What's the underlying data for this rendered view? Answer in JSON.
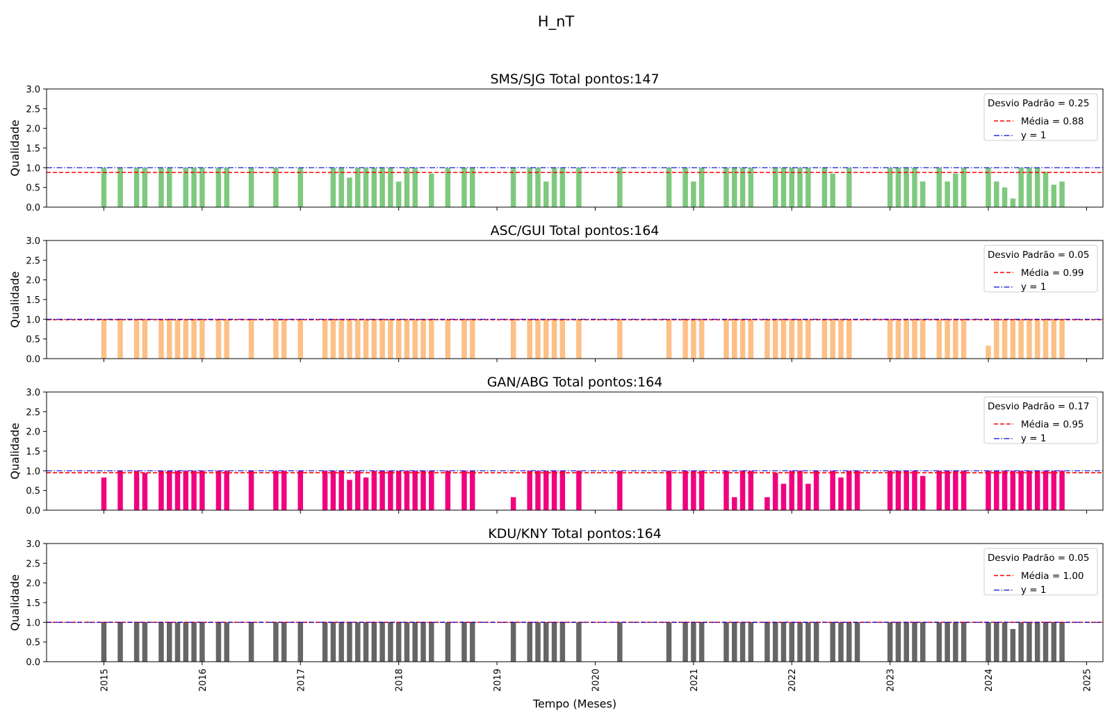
{
  "figure": {
    "suptitle": "H_nT",
    "xlabel": "Tempo (Meses)",
    "ylabel": "Qualidade",
    "year_ticks": [
      "2015",
      "2016",
      "2017",
      "2018",
      "2019",
      "2020",
      "2021",
      "2022",
      "2023",
      "2024",
      "2025"
    ],
    "y_ticks": [
      "0.0",
      "0.5",
      "1.0",
      "1.5",
      "2.0",
      "2.5",
      "3.0"
    ]
  },
  "chart_data": [
    {
      "type": "bar",
      "title": "SMS/SJG Total pontos:147",
      "ylabel": "Qualidade",
      "xlabel": "",
      "ylim": [
        0,
        3.0
      ],
      "xlim": [
        "2014-06",
        "2025-03"
      ],
      "color": "#7fc97f",
      "legend": {
        "title": "Desvio Padrão = 0.25",
        "entries": [
          "Média = 0.88",
          "y = 1"
        ],
        "placement": "upper right"
      },
      "mean": 0.88,
      "reference": 1,
      "mean_color": "#ff0000",
      "reference_color": "#0000cc",
      "points": [
        [
          "2015-01",
          1
        ],
        [
          "2015-03",
          1
        ],
        [
          "2015-05",
          1
        ],
        [
          "2015-06",
          1
        ],
        [
          "2015-08",
          1
        ],
        [
          "2015-09",
          1
        ],
        [
          "2015-11",
          1
        ],
        [
          "2015-12",
          1
        ],
        [
          "2016-01",
          1
        ],
        [
          "2016-03",
          1
        ],
        [
          "2016-04",
          1
        ],
        [
          "2016-07",
          1
        ],
        [
          "2016-10",
          1
        ],
        [
          "2017-01",
          1
        ],
        [
          "2017-05",
          1
        ],
        [
          "2017-06",
          1
        ],
        [
          "2017-07",
          0.75
        ],
        [
          "2017-08",
          1
        ],
        [
          "2017-09",
          1
        ],
        [
          "2017-10",
          1
        ],
        [
          "2017-11",
          1
        ],
        [
          "2017-12",
          1
        ],
        [
          "2018-01",
          0.65
        ],
        [
          "2018-02",
          1
        ],
        [
          "2018-03",
          1
        ],
        [
          "2018-05",
          0.85
        ],
        [
          "2018-07",
          1
        ],
        [
          "2018-09",
          1
        ],
        [
          "2018-10",
          1
        ],
        [
          "2019-03",
          1
        ],
        [
          "2019-05",
          1
        ],
        [
          "2019-06",
          1
        ],
        [
          "2019-07",
          0.65
        ],
        [
          "2019-08",
          1
        ],
        [
          "2019-09",
          1
        ],
        [
          "2019-11",
          1
        ],
        [
          "2020-04",
          1
        ],
        [
          "2020-10",
          1
        ],
        [
          "2020-12",
          1
        ],
        [
          "2021-01",
          0.65
        ],
        [
          "2021-02",
          1
        ],
        [
          "2021-05",
          1
        ],
        [
          "2021-06",
          1
        ],
        [
          "2021-07",
          1
        ],
        [
          "2021-08",
          1
        ],
        [
          "2021-11",
          1
        ],
        [
          "2021-12",
          1
        ],
        [
          "2022-01",
          1
        ],
        [
          "2022-02",
          1
        ],
        [
          "2022-03",
          1
        ],
        [
          "2022-05",
          1
        ],
        [
          "2022-06",
          0.85
        ],
        [
          "2022-08",
          1
        ],
        [
          "2023-01",
          1
        ],
        [
          "2023-02",
          1
        ],
        [
          "2023-03",
          1
        ],
        [
          "2023-04",
          1
        ],
        [
          "2023-05",
          0.65
        ],
        [
          "2023-07",
          1
        ],
        [
          "2023-08",
          0.65
        ],
        [
          "2023-09",
          0.85
        ],
        [
          "2023-10",
          1
        ],
        [
          "2024-01",
          1
        ],
        [
          "2024-02",
          0.65
        ],
        [
          "2024-03",
          0.5
        ],
        [
          "2024-04",
          0.22
        ],
        [
          "2024-05",
          1
        ],
        [
          "2024-06",
          1
        ],
        [
          "2024-07",
          1
        ],
        [
          "2024-08",
          0.9
        ],
        [
          "2024-09",
          0.57
        ],
        [
          "2024-10",
          0.65
        ]
      ]
    },
    {
      "type": "bar",
      "title": "ASC/GUI Total pontos:164",
      "ylabel": "Qualidade",
      "xlabel": "",
      "ylim": [
        0,
        3.0
      ],
      "xlim": [
        "2014-06",
        "2025-03"
      ],
      "color": "#fdc086",
      "legend": {
        "title": "Desvio Padrão = 0.05",
        "entries": [
          "Média = 0.99",
          "y = 1"
        ],
        "placement": "upper right"
      },
      "mean": 0.99,
      "reference": 1,
      "mean_color": "#ff0000",
      "reference_color": "#0000cc",
      "points": [
        [
          "2015-01",
          1
        ],
        [
          "2015-03",
          1
        ],
        [
          "2015-05",
          1
        ],
        [
          "2015-06",
          1
        ],
        [
          "2015-08",
          1
        ],
        [
          "2015-09",
          1
        ],
        [
          "2015-10",
          1
        ],
        [
          "2015-11",
          1
        ],
        [
          "2015-12",
          1
        ],
        [
          "2016-01",
          1
        ],
        [
          "2016-03",
          1
        ],
        [
          "2016-04",
          1
        ],
        [
          "2016-07",
          1
        ],
        [
          "2016-10",
          1
        ],
        [
          "2016-11",
          1
        ],
        [
          "2017-01",
          1
        ],
        [
          "2017-04",
          1
        ],
        [
          "2017-05",
          1
        ],
        [
          "2017-06",
          1
        ],
        [
          "2017-07",
          1
        ],
        [
          "2017-08",
          1
        ],
        [
          "2017-09",
          1
        ],
        [
          "2017-10",
          1
        ],
        [
          "2017-11",
          1
        ],
        [
          "2017-12",
          1
        ],
        [
          "2018-01",
          1
        ],
        [
          "2018-02",
          1
        ],
        [
          "2018-03",
          1
        ],
        [
          "2018-04",
          1
        ],
        [
          "2018-05",
          1
        ],
        [
          "2018-07",
          1
        ],
        [
          "2018-09",
          1
        ],
        [
          "2018-10",
          1
        ],
        [
          "2019-03",
          1
        ],
        [
          "2019-05",
          1
        ],
        [
          "2019-06",
          1
        ],
        [
          "2019-07",
          1
        ],
        [
          "2019-08",
          1
        ],
        [
          "2019-09",
          1
        ],
        [
          "2019-11",
          1
        ],
        [
          "2020-04",
          1
        ],
        [
          "2020-10",
          1
        ],
        [
          "2020-12",
          1
        ],
        [
          "2021-01",
          1
        ],
        [
          "2021-02",
          1
        ],
        [
          "2021-05",
          1
        ],
        [
          "2021-06",
          1
        ],
        [
          "2021-07",
          1
        ],
        [
          "2021-08",
          1
        ],
        [
          "2021-10",
          1
        ],
        [
          "2021-11",
          1
        ],
        [
          "2021-12",
          1
        ],
        [
          "2022-01",
          1
        ],
        [
          "2022-02",
          1
        ],
        [
          "2022-03",
          1
        ],
        [
          "2022-05",
          1
        ],
        [
          "2022-06",
          1
        ],
        [
          "2022-07",
          1
        ],
        [
          "2022-08",
          1
        ],
        [
          "2023-01",
          1
        ],
        [
          "2023-02",
          1
        ],
        [
          "2023-03",
          1
        ],
        [
          "2023-04",
          1
        ],
        [
          "2023-05",
          1
        ],
        [
          "2023-07",
          1
        ],
        [
          "2023-08",
          1
        ],
        [
          "2023-09",
          1
        ],
        [
          "2023-10",
          1
        ],
        [
          "2024-01",
          0.33
        ],
        [
          "2024-02",
          1
        ],
        [
          "2024-03",
          1
        ],
        [
          "2024-04",
          1
        ],
        [
          "2024-05",
          1
        ],
        [
          "2024-06",
          1
        ],
        [
          "2024-07",
          1
        ],
        [
          "2024-08",
          1
        ],
        [
          "2024-09",
          1
        ],
        [
          "2024-10",
          1
        ]
      ]
    },
    {
      "type": "bar",
      "title": "GAN/ABG Total pontos:164",
      "ylabel": "Qualidade",
      "xlabel": "",
      "ylim": [
        0,
        3.0
      ],
      "xlim": [
        "2014-06",
        "2025-03"
      ],
      "color": "#f0027f",
      "legend": {
        "title": "Desvio Padrão = 0.17",
        "entries": [
          "Média = 0.95",
          "y = 1"
        ],
        "placement": "upper right"
      },
      "mean": 0.95,
      "reference": 1,
      "mean_color": "#ff0000",
      "reference_color": "#0000cc",
      "points": [
        [
          "2015-01",
          0.83
        ],
        [
          "2015-03",
          1
        ],
        [
          "2015-05",
          1
        ],
        [
          "2015-06",
          0.95
        ],
        [
          "2015-08",
          1
        ],
        [
          "2015-09",
          1
        ],
        [
          "2015-10",
          1
        ],
        [
          "2015-11",
          1
        ],
        [
          "2015-12",
          1
        ],
        [
          "2016-01",
          1
        ],
        [
          "2016-03",
          1
        ],
        [
          "2016-04",
          1
        ],
        [
          "2016-07",
          1
        ],
        [
          "2016-10",
          1
        ],
        [
          "2016-11",
          1
        ],
        [
          "2017-01",
          1
        ],
        [
          "2017-04",
          1
        ],
        [
          "2017-05",
          1
        ],
        [
          "2017-06",
          1
        ],
        [
          "2017-07",
          0.77
        ],
        [
          "2017-08",
          1
        ],
        [
          "2017-09",
          0.83
        ],
        [
          "2017-10",
          1
        ],
        [
          "2017-11",
          1
        ],
        [
          "2017-12",
          1
        ],
        [
          "2018-01",
          1
        ],
        [
          "2018-02",
          1
        ],
        [
          "2018-03",
          1
        ],
        [
          "2018-04",
          1
        ],
        [
          "2018-05",
          1
        ],
        [
          "2018-07",
          1
        ],
        [
          "2018-09",
          1
        ],
        [
          "2018-10",
          1
        ],
        [
          "2019-03",
          0.33
        ],
        [
          "2019-05",
          1
        ],
        [
          "2019-06",
          1
        ],
        [
          "2019-07",
          1
        ],
        [
          "2019-08",
          1
        ],
        [
          "2019-09",
          1
        ],
        [
          "2019-11",
          1
        ],
        [
          "2020-04",
          1
        ],
        [
          "2020-10",
          1
        ],
        [
          "2020-12",
          1
        ],
        [
          "2021-01",
          1
        ],
        [
          "2021-02",
          1
        ],
        [
          "2021-05",
          1
        ],
        [
          "2021-06",
          0.33
        ],
        [
          "2021-07",
          1
        ],
        [
          "2021-08",
          1
        ],
        [
          "2021-10",
          0.33
        ],
        [
          "2021-11",
          0.95
        ],
        [
          "2021-12",
          0.67
        ],
        [
          "2022-01",
          1
        ],
        [
          "2022-02",
          1
        ],
        [
          "2022-03",
          0.67
        ],
        [
          "2022-04",
          1
        ],
        [
          "2022-06",
          1
        ],
        [
          "2022-07",
          0.83
        ],
        [
          "2022-08",
          1
        ],
        [
          "2022-09",
          1
        ],
        [
          "2023-01",
          1
        ],
        [
          "2023-02",
          1
        ],
        [
          "2023-03",
          1
        ],
        [
          "2023-04",
          1
        ],
        [
          "2023-05",
          0.87
        ],
        [
          "2023-07",
          1
        ],
        [
          "2023-08",
          1
        ],
        [
          "2023-09",
          1
        ],
        [
          "2023-10",
          1
        ],
        [
          "2024-01",
          1
        ],
        [
          "2024-02",
          1
        ],
        [
          "2024-03",
          1
        ],
        [
          "2024-04",
          1
        ],
        [
          "2024-05",
          1
        ],
        [
          "2024-06",
          1
        ],
        [
          "2024-07",
          1
        ],
        [
          "2024-08",
          1
        ],
        [
          "2024-09",
          1
        ],
        [
          "2024-10",
          1
        ]
      ]
    },
    {
      "type": "bar",
      "title": "KDU/KNY Total pontos:164",
      "ylabel": "Qualidade",
      "xlabel": "Tempo (Meses)",
      "ylim": [
        0,
        3.0
      ],
      "xlim": [
        "2014-06",
        "2025-03"
      ],
      "color": "#666666",
      "legend": {
        "title": "Desvio Padrão = 0.05",
        "entries": [
          "Média = 1.00",
          "y = 1"
        ],
        "placement": "upper right"
      },
      "mean": 1.0,
      "reference": 1,
      "mean_color": "#ff0000",
      "reference_color": "#0000cc",
      "points": [
        [
          "2015-01",
          1
        ],
        [
          "2015-03",
          1
        ],
        [
          "2015-05",
          1
        ],
        [
          "2015-06",
          1
        ],
        [
          "2015-08",
          1
        ],
        [
          "2015-09",
          1
        ],
        [
          "2015-10",
          1
        ],
        [
          "2015-11",
          1
        ],
        [
          "2015-12",
          1
        ],
        [
          "2016-01",
          1
        ],
        [
          "2016-03",
          1
        ],
        [
          "2016-04",
          1
        ],
        [
          "2016-07",
          1
        ],
        [
          "2016-10",
          1
        ],
        [
          "2016-11",
          1
        ],
        [
          "2017-01",
          1
        ],
        [
          "2017-04",
          1
        ],
        [
          "2017-05",
          1
        ],
        [
          "2017-06",
          1
        ],
        [
          "2017-07",
          1
        ],
        [
          "2017-08",
          1
        ],
        [
          "2017-09",
          1
        ],
        [
          "2017-10",
          1
        ],
        [
          "2017-11",
          1
        ],
        [
          "2017-12",
          1
        ],
        [
          "2018-01",
          1
        ],
        [
          "2018-02",
          1
        ],
        [
          "2018-03",
          1
        ],
        [
          "2018-04",
          1
        ],
        [
          "2018-05",
          1
        ],
        [
          "2018-07",
          1
        ],
        [
          "2018-09",
          1
        ],
        [
          "2018-10",
          1
        ],
        [
          "2019-03",
          1
        ],
        [
          "2019-05",
          1
        ],
        [
          "2019-06",
          1
        ],
        [
          "2019-07",
          1
        ],
        [
          "2019-08",
          1
        ],
        [
          "2019-09",
          1
        ],
        [
          "2019-11",
          1
        ],
        [
          "2020-04",
          1
        ],
        [
          "2020-10",
          1
        ],
        [
          "2020-12",
          1
        ],
        [
          "2021-01",
          1
        ],
        [
          "2021-02",
          1
        ],
        [
          "2021-05",
          1
        ],
        [
          "2021-06",
          1
        ],
        [
          "2021-07",
          1
        ],
        [
          "2021-08",
          1
        ],
        [
          "2021-10",
          1
        ],
        [
          "2021-11",
          1
        ],
        [
          "2021-12",
          1
        ],
        [
          "2022-01",
          1
        ],
        [
          "2022-02",
          1
        ],
        [
          "2022-03",
          1
        ],
        [
          "2022-04",
          1
        ],
        [
          "2022-06",
          1
        ],
        [
          "2022-07",
          1
        ],
        [
          "2022-08",
          1
        ],
        [
          "2022-09",
          1
        ],
        [
          "2023-01",
          1
        ],
        [
          "2023-02",
          1
        ],
        [
          "2023-03",
          1
        ],
        [
          "2023-04",
          1
        ],
        [
          "2023-05",
          1
        ],
        [
          "2023-07",
          1
        ],
        [
          "2023-08",
          1
        ],
        [
          "2023-09",
          1
        ],
        [
          "2023-10",
          1
        ],
        [
          "2024-01",
          1
        ],
        [
          "2024-02",
          1
        ],
        [
          "2024-03",
          1
        ],
        [
          "2024-04",
          0.83
        ],
        [
          "2024-05",
          1
        ],
        [
          "2024-06",
          1
        ],
        [
          "2024-07",
          1
        ],
        [
          "2024-08",
          1
        ],
        [
          "2024-09",
          1
        ],
        [
          "2024-10",
          1
        ]
      ]
    }
  ]
}
